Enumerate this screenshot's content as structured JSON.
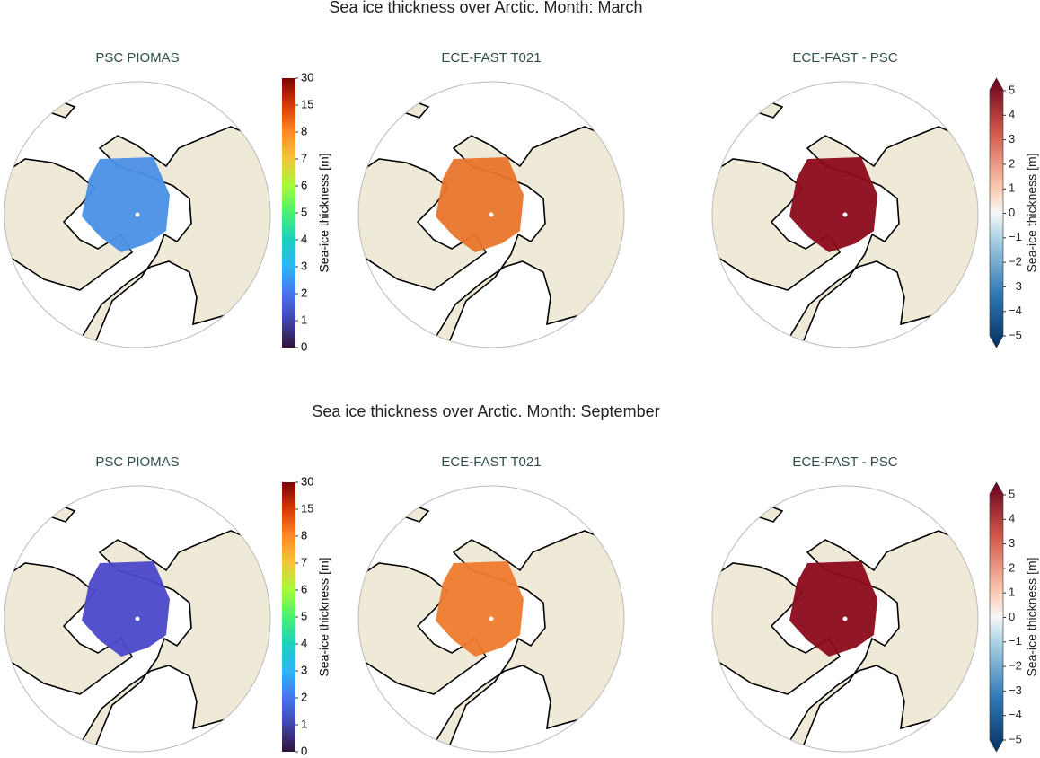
{
  "rows": [
    {
      "title": "Sea ice thickness over Arctic. Month: March",
      "panels": [
        {
          "title": "PSC PIOMAS",
          "colorbar": {
            "label": "Sea-ice thickness [m]",
            "ticks": [
              0,
              1,
              2,
              3,
              4,
              5,
              6,
              7,
              8,
              15,
              30
            ]
          }
        },
        {
          "title": "ECE-FAST T021",
          "colorbar": {
            "label": "Sea-ice thickness [m]",
            "ticks": [
              0,
              1,
              2,
              3,
              4,
              5,
              6,
              7,
              8,
              15,
              30
            ]
          }
        },
        {
          "title": "ECE-FAST -  PSC",
          "colorbar": {
            "label": "Sea-ice thickness [m]",
            "ticks": [
              {
                "value": -5,
                "label": "−5"
              },
              {
                "value": -4,
                "label": "−4"
              },
              {
                "value": -3,
                "label": "−3"
              },
              {
                "value": -2,
                "label": "−2"
              },
              {
                "value": -1,
                "label": "−1"
              },
              0,
              1,
              2,
              3,
              4,
              5
            ]
          }
        }
      ]
    },
    {
      "title": "Sea ice thickness over Arctic. Month: September",
      "panels": [
        {
          "title": "PSC PIOMAS",
          "colorbar": {
            "label": "Sea-ice thickness [m]",
            "ticks": [
              0,
              1,
              2,
              3,
              4,
              5,
              6,
              7,
              8,
              15,
              30
            ]
          }
        },
        {
          "title": "ECE-FAST T021",
          "colorbar": {
            "label": "Sea-ice thickness [m]",
            "ticks": [
              0,
              1,
              2,
              3,
              4,
              5,
              6,
              7,
              8,
              15,
              30
            ]
          }
        },
        {
          "title": "ECE-FAST -  PSC",
          "colorbar": {
            "label": "Sea-ice thickness [m]",
            "ticks": [
              {
                "value": -5,
                "label": "−5"
              },
              {
                "value": -4,
                "label": "−4"
              },
              {
                "value": -3,
                "label": "−3"
              },
              {
                "value": -2,
                "label": "−2"
              },
              {
                "value": -1,
                "label": "−1"
              },
              0,
              1,
              2,
              3,
              4,
              5
            ]
          }
        }
      ]
    }
  ]
}
